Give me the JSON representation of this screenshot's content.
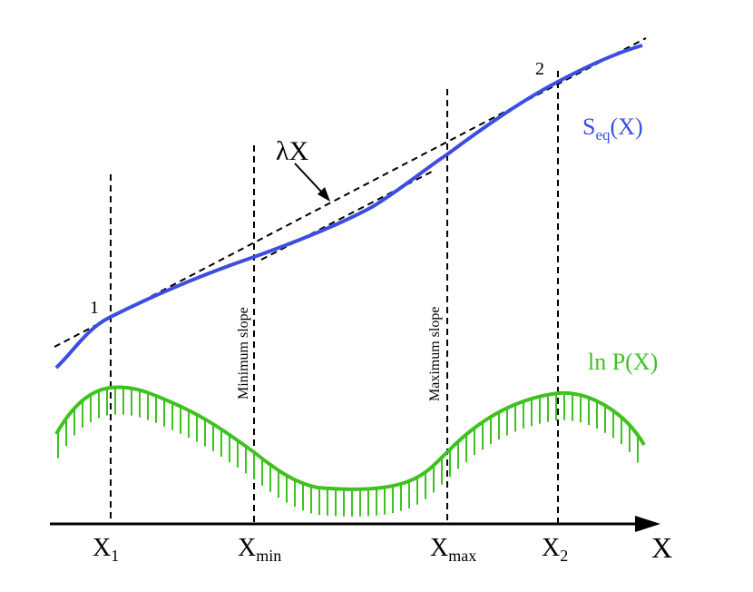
{
  "axis": {
    "x_label": "X",
    "ticks": [
      {
        "main": "X",
        "sub": "1"
      },
      {
        "main": "X",
        "sub": "min"
      },
      {
        "main": "X",
        "sub": "max"
      },
      {
        "main": "X",
        "sub": "2"
      }
    ]
  },
  "curves": {
    "entropy": {
      "main": "S",
      "sub": "eq",
      "suffix": "(X)",
      "color": "#3b4ee0"
    },
    "log_prob": {
      "label": "ln P(X)",
      "color": "#3ec21f"
    }
  },
  "tangent_label": "λX",
  "point_labels": [
    "1",
    "2"
  ],
  "guide_labels": {
    "min_slope": "Minimum slope",
    "max_slope": "Maximum slope"
  }
}
